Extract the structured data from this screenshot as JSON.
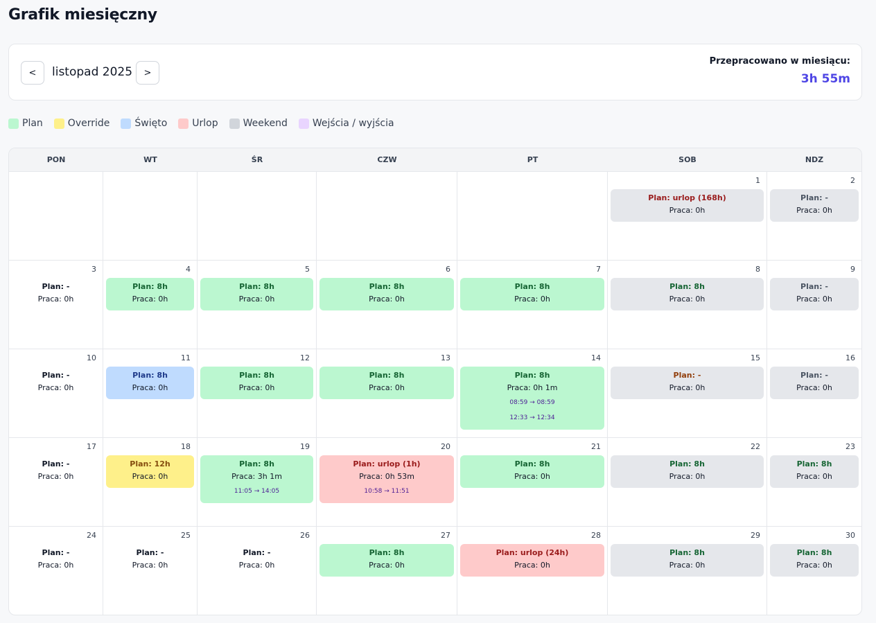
{
  "page": {
    "title": "Grafik miesięczny"
  },
  "nav": {
    "prev_label": "<",
    "next_label": ">",
    "month": "listopad 2025",
    "summary_label": "Przepracowano w miesiącu:",
    "summary_value": "3h 55m"
  },
  "legend": [
    {
      "label": "Plan",
      "color": "#bbf7d0"
    },
    {
      "label": "Override",
      "color": "#fef08a"
    },
    {
      "label": "Święto",
      "color": "#bfdbfe"
    },
    {
      "label": "Urlop",
      "color": "#fecaca"
    },
    {
      "label": "Weekend",
      "color": "#d1d5db"
    },
    {
      "label": "Wejścia / wyjścia",
      "color": "#e9d5ff"
    }
  ],
  "weekdays": [
    "PON",
    "WT",
    "ŚR",
    "CZW",
    "PT",
    "SOB",
    "NDZ"
  ],
  "days": [
    null,
    null,
    null,
    null,
    null,
    {
      "num": "1",
      "plan": "Plan: urlop (168h)",
      "work": "Praca: 0h",
      "bg": "weekend",
      "tc": "vacation",
      "entries": []
    },
    {
      "num": "2",
      "plan": "Plan: -",
      "work": "Praca: 0h",
      "bg": "weekend",
      "tc": "weekend",
      "entries": []
    },
    {
      "num": "3",
      "plan": "Plan: -",
      "work": "Praca: 0h",
      "bg": "plain",
      "tc": "none",
      "entries": []
    },
    {
      "num": "4",
      "plan": "Plan: 8h",
      "work": "Praca: 0h",
      "bg": "plan",
      "tc": "plan",
      "entries": []
    },
    {
      "num": "5",
      "plan": "Plan: 8h",
      "work": "Praca: 0h",
      "bg": "plan",
      "tc": "plan",
      "entries": []
    },
    {
      "num": "6",
      "plan": "Plan: 8h",
      "work": "Praca: 0h",
      "bg": "plan",
      "tc": "plan",
      "entries": []
    },
    {
      "num": "7",
      "plan": "Plan: 8h",
      "work": "Praca: 0h",
      "bg": "plan",
      "tc": "plan",
      "entries": []
    },
    {
      "num": "8",
      "plan": "Plan: 8h",
      "work": "Praca: 0h",
      "bg": "weekend",
      "tc": "plan",
      "entries": []
    },
    {
      "num": "9",
      "plan": "Plan: -",
      "work": "Praca: 0h",
      "bg": "weekend",
      "tc": "weekend",
      "entries": []
    },
    {
      "num": "10",
      "plan": "Plan: -",
      "work": "Praca: 0h",
      "bg": "plain",
      "tc": "none",
      "entries": []
    },
    {
      "num": "11",
      "plan": "Plan: 8h",
      "work": "Praca: 0h",
      "bg": "holiday",
      "tc": "holiday",
      "entries": []
    },
    {
      "num": "12",
      "plan": "Plan: 8h",
      "work": "Praca: 0h",
      "bg": "plan",
      "tc": "plan",
      "entries": []
    },
    {
      "num": "13",
      "plan": "Plan: 8h",
      "work": "Praca: 0h",
      "bg": "plan",
      "tc": "plan",
      "entries": []
    },
    {
      "num": "14",
      "plan": "Plan: 8h",
      "work": "Praca: 0h 1m",
      "bg": "plan",
      "tc": "plan",
      "entries": [
        "08:59 → 08:59",
        "12:33 → 12:34"
      ]
    },
    {
      "num": "15",
      "plan": "Plan: -",
      "work": "Praca: 0h",
      "bg": "weekend",
      "tc": "weekend-override",
      "entries": []
    },
    {
      "num": "16",
      "plan": "Plan: -",
      "work": "Praca: 0h",
      "bg": "weekend",
      "tc": "weekend",
      "entries": []
    },
    {
      "num": "17",
      "plan": "Plan: -",
      "work": "Praca: 0h",
      "bg": "plain",
      "tc": "none",
      "entries": []
    },
    {
      "num": "18",
      "plan": "Plan: 12h",
      "work": "Praca: 0h",
      "bg": "override",
      "tc": "override",
      "entries": []
    },
    {
      "num": "19",
      "plan": "Plan: 8h",
      "work": "Praca: 3h 1m",
      "bg": "plan",
      "tc": "plan",
      "entries": [
        "11:05 → 14:05"
      ]
    },
    {
      "num": "20",
      "plan": "Plan: urlop (1h)",
      "work": "Praca: 0h 53m",
      "bg": "vacation",
      "tc": "vacation",
      "entries": [
        "10:58 → 11:51"
      ]
    },
    {
      "num": "21",
      "plan": "Plan: 8h",
      "work": "Praca: 0h",
      "bg": "plan",
      "tc": "plan",
      "entries": []
    },
    {
      "num": "22",
      "plan": "Plan: 8h",
      "work": "Praca: 0h",
      "bg": "weekend",
      "tc": "plan",
      "entries": []
    },
    {
      "num": "23",
      "plan": "Plan: 8h",
      "work": "Praca: 0h",
      "bg": "weekend",
      "tc": "plan",
      "entries": []
    },
    {
      "num": "24",
      "plan": "Plan: -",
      "work": "Praca: 0h",
      "bg": "plain",
      "tc": "none",
      "entries": []
    },
    {
      "num": "25",
      "plan": "Plan: -",
      "work": "Praca: 0h",
      "bg": "plain",
      "tc": "none",
      "entries": []
    },
    {
      "num": "26",
      "plan": "Plan: -",
      "work": "Praca: 0h",
      "bg": "plain",
      "tc": "none",
      "entries": []
    },
    {
      "num": "27",
      "plan": "Plan: 8h",
      "work": "Praca: 0h",
      "bg": "plan",
      "tc": "plan",
      "entries": []
    },
    {
      "num": "28",
      "plan": "Plan: urlop (24h)",
      "work": "Praca: 0h",
      "bg": "vacation",
      "tc": "vacation",
      "entries": []
    },
    {
      "num": "29",
      "plan": "Plan: 8h",
      "work": "Praca: 0h",
      "bg": "weekend",
      "tc": "plan",
      "entries": []
    },
    {
      "num": "30",
      "plan": "Plan: 8h",
      "work": "Praca: 0h",
      "bg": "weekend",
      "tc": "plan",
      "entries": []
    }
  ]
}
